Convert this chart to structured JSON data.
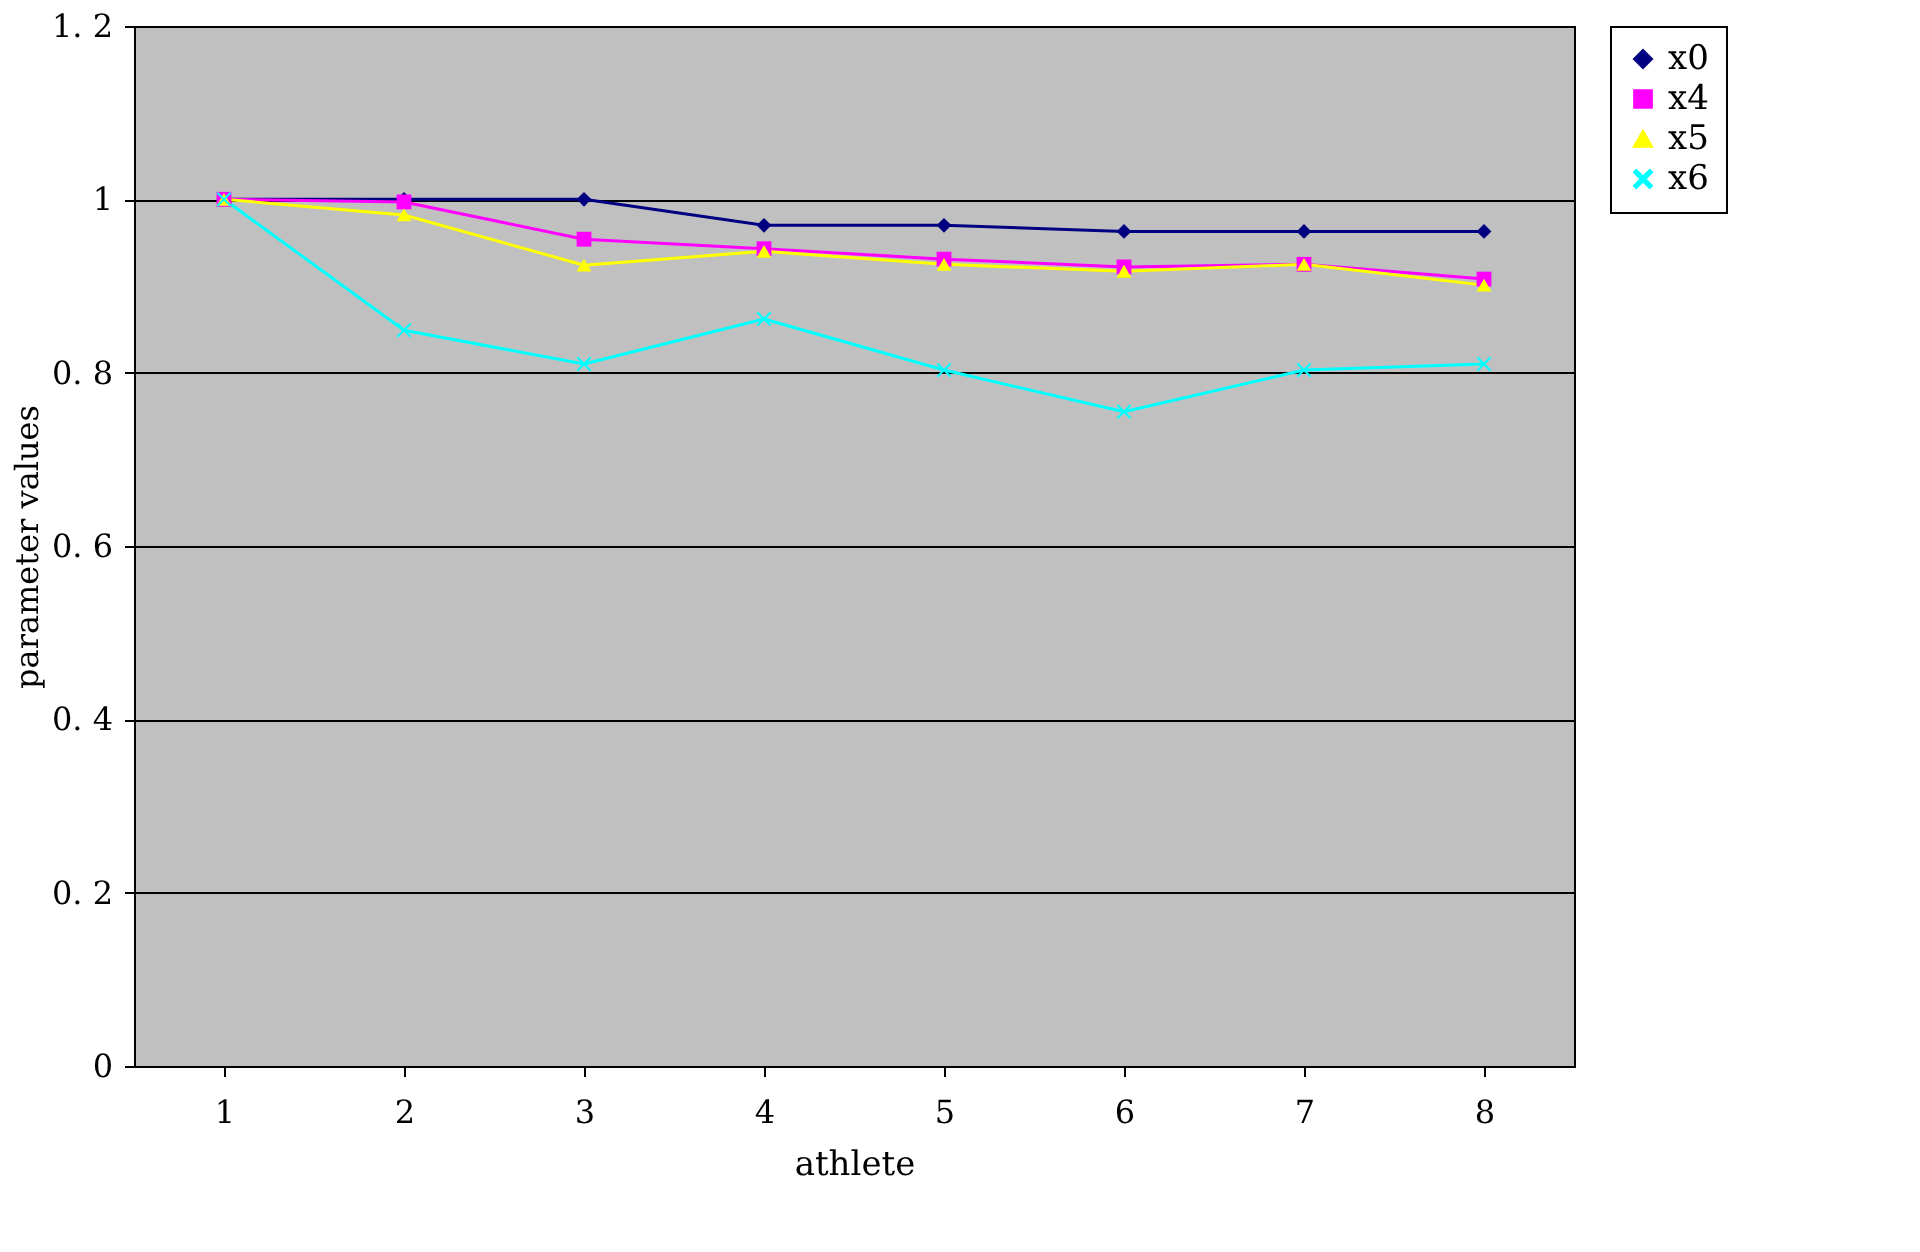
{
  "chart_data": {
    "type": "line",
    "xlabel": "athlete",
    "ylabel": "parameter values",
    "categories": [
      "1",
      "2",
      "3",
      "4",
      "5",
      "6",
      "7",
      "8"
    ],
    "ylim": [
      0,
      1.2
    ],
    "yticks": [
      0,
      {
        "value": 0.2,
        "label": "0. 2"
      },
      {
        "value": 0.4,
        "label": "0. 4"
      },
      {
        "value": 0.6,
        "label": "0. 6"
      },
      {
        "value": 0.8,
        "label": "0. 8"
      },
      1,
      {
        "value": 1.2,
        "label": "1. 2"
      }
    ],
    "grid": "y",
    "legend": "right",
    "series": [
      {
        "name": "x0",
        "color": "#000080",
        "marker": "diamond",
        "values": [
          1,
          1,
          1,
          0.97,
          0.97,
          0.963,
          0.963,
          0.963
        ]
      },
      {
        "name": "x4",
        "color": "#ff00ff",
        "marker": "square",
        "values": [
          1,
          0.997,
          0.954,
          0.943,
          0.931,
          0.922,
          0.925,
          0.908
        ]
      },
      {
        "name": "x5",
        "color": "#ffff00",
        "marker": "triangle",
        "values": [
          1,
          0.982,
          0.924,
          0.94,
          0.925,
          0.917,
          0.925,
          0.901
        ]
      },
      {
        "name": "x6",
        "color": "#00ffff",
        "marker": "cross",
        "values": [
          1,
          0.849,
          0.81,
          0.862,
          0.803,
          0.755,
          0.803,
          0.81
        ]
      }
    ]
  }
}
